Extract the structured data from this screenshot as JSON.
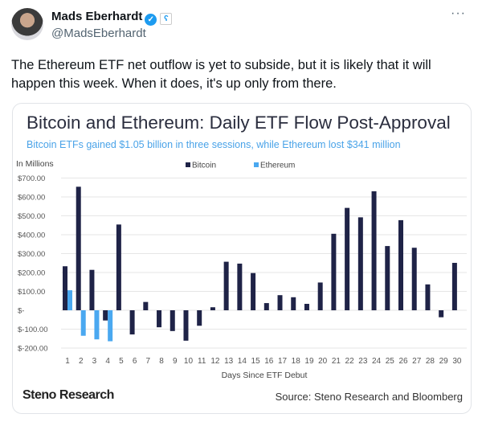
{
  "tweet": {
    "author_name": "Mads Eberhardt",
    "handle": "@MadsEberhardt",
    "verified_icon": "verified-check-icon",
    "affiliate_badge_icon": "affiliate-badge-icon",
    "more_label": "···",
    "text": "The Ethereum ETF net outflow is yet to subside, but it is likely that it will happen this week. When it does, it's up only from there."
  },
  "card": {
    "logo": "Steno Research",
    "source": "Source: Steno Research and Bloomberg"
  },
  "chart_data": {
    "type": "bar",
    "title": "Bitcoin and Ethereum: Daily ETF Flow Post-Approval",
    "subtitle": "Bitcoin ETFs gained $1.05 billion in three sessions, while Ethereum lost $341 million",
    "unit_label": "In Millions",
    "xlabel": "Days Since ETF Debut",
    "ylim": [
      -200,
      700
    ],
    "yticks": [
      700,
      600,
      500,
      400,
      300,
      200,
      100,
      0,
      -100,
      -200
    ],
    "ytick_labels": [
      "$700.00",
      "$600.00",
      "$500.00",
      "$400.00",
      "$300.00",
      "$200.00",
      "$100.00",
      "$-",
      "$-100.00",
      "$-200.00"
    ],
    "grid": true,
    "legend_position": "top",
    "categories": [
      1,
      2,
      3,
      4,
      5,
      6,
      7,
      8,
      9,
      10,
      11,
      12,
      13,
      14,
      15,
      16,
      17,
      18,
      19,
      20,
      21,
      22,
      23,
      24,
      25,
      26,
      27,
      28,
      29,
      30
    ],
    "series": [
      {
        "name": "Bitcoin",
        "color": "#1f2347",
        "values": [
          233,
          654,
          214,
          -54,
          454,
          -128,
          44,
          -90,
          -110,
          -161,
          -82,
          16,
          257,
          247,
          197,
          38,
          80,
          69,
          34,
          147,
          405,
          542,
          492,
          630,
          340,
          477,
          331,
          137,
          -37,
          251
        ]
      },
      {
        "name": "Ethereum",
        "color": "#4aa8f0",
        "values": [
          106,
          -135,
          -154,
          -164,
          null,
          null,
          null,
          null,
          null,
          null,
          null,
          null,
          null,
          null,
          null,
          null,
          null,
          null,
          null,
          null,
          null,
          null,
          null,
          null,
          null,
          null,
          null,
          null,
          null,
          null
        ]
      }
    ]
  }
}
